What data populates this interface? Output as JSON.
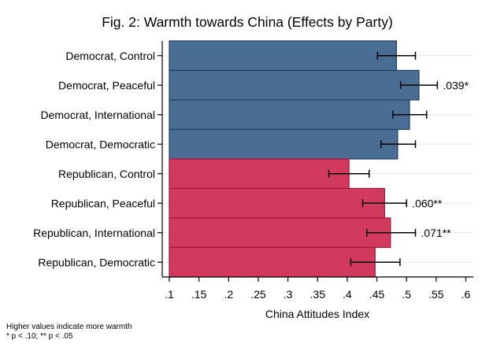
{
  "chart_data": {
    "type": "bar",
    "orientation": "horizontal",
    "title": "Fig. 2: Warmth towards China (Effects by Party)",
    "xlabel": "China Attitudes Index",
    "ylabel": "",
    "xlim": [
      0.1,
      0.6
    ],
    "xticks": [
      0.1,
      0.15,
      0.2,
      0.25,
      0.3,
      0.35,
      0.4,
      0.45,
      0.5,
      0.55,
      0.6
    ],
    "xtick_labels": [
      ".1",
      ".15",
      ".2",
      ".25",
      ".3",
      ".35",
      ".4",
      ".45",
      ".5",
      ".55",
      ".6"
    ],
    "categories": [
      "Democrat, Control",
      "Democrat, Peaceful",
      "Democrat, International",
      "Democrat, Democratic",
      "Republican, Control",
      "Republican, Peaceful",
      "Republican, International",
      "Republican, Democratic"
    ],
    "values": [
      0.483,
      0.521,
      0.505,
      0.485,
      0.403,
      0.463,
      0.473,
      0.447
    ],
    "ci_low": [
      0.451,
      0.49,
      0.477,
      0.457,
      0.369,
      0.426,
      0.433,
      0.406
    ],
    "ci_high": [
      0.515,
      0.552,
      0.534,
      0.515,
      0.437,
      0.5,
      0.515,
      0.489
    ],
    "groups": [
      "Democrat",
      "Democrat",
      "Democrat",
      "Democrat",
      "Republican",
      "Republican",
      "Republican",
      "Republican"
    ],
    "annotations": [
      "",
      ".039*",
      "",
      "",
      "",
      ".060**",
      ".071**",
      ""
    ],
    "colors": {
      "Democrat": "#4a6d94",
      "Republican": "#d13a5c",
      "outline_dem": "#1f3f66",
      "outline_rep": "#a8163a"
    },
    "grid": true,
    "notes": [
      "Higher values indicate more warmth",
      "* p < .10; ** p < .05"
    ]
  }
}
